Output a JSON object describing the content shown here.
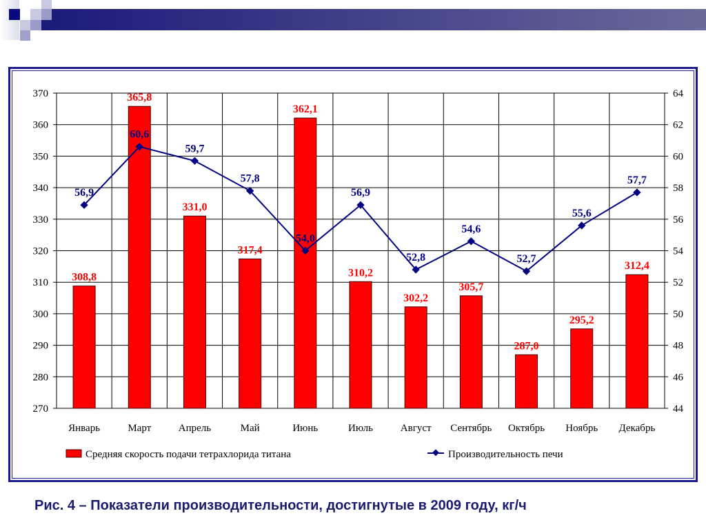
{
  "caption": "Рис. 4 – Показатели производительности, достигнутые в 2009 году, кг/ч",
  "colors": {
    "bar": "#FF0000",
    "line": "#000080",
    "frame": "#1a1a8c"
  },
  "chart_data": {
    "type": "bar+line",
    "categories": [
      "Январь",
      "Март",
      "Апрель",
      "Май",
      "Июнь",
      "Июль",
      "Август",
      "Сентябрь",
      "Октябрь",
      "Ноябрь",
      "Декабрь"
    ],
    "series": [
      {
        "name": "Средняя скорость подачи тетрахлорида титана",
        "type": "bar",
        "axis": "left",
        "values": [
          308.8,
          365.8,
          331.0,
          317.4,
          362.1,
          310.2,
          302.2,
          305.7,
          287.0,
          295.2,
          312.4
        ],
        "labels": [
          "308,8",
          "365,8",
          "331,0",
          "317,4",
          "362,1",
          "310,2",
          "302,2",
          "305,7",
          "287,0",
          "295,2",
          "312,4"
        ]
      },
      {
        "name": "Производительность печи",
        "type": "line",
        "axis": "right",
        "values": [
          56.9,
          60.6,
          59.7,
          57.8,
          54.0,
          56.9,
          52.8,
          54.6,
          52.7,
          55.6,
          57.7
        ],
        "labels": [
          "56,9",
          "60,6",
          "59,7",
          "57,8",
          "54,0",
          "56,9",
          "52,8",
          "54,6",
          "52,7",
          "55,6",
          "57,7"
        ]
      }
    ],
    "ylim_left": [
      270,
      370
    ],
    "yticks_left": [
      270,
      280,
      290,
      300,
      310,
      320,
      330,
      340,
      350,
      360,
      370
    ],
    "ylim_right": [
      44,
      64
    ],
    "yticks_right": [
      44,
      46,
      48,
      50,
      52,
      54,
      56,
      58,
      60,
      62,
      64
    ],
    "grid": true,
    "legend": "bottom"
  }
}
